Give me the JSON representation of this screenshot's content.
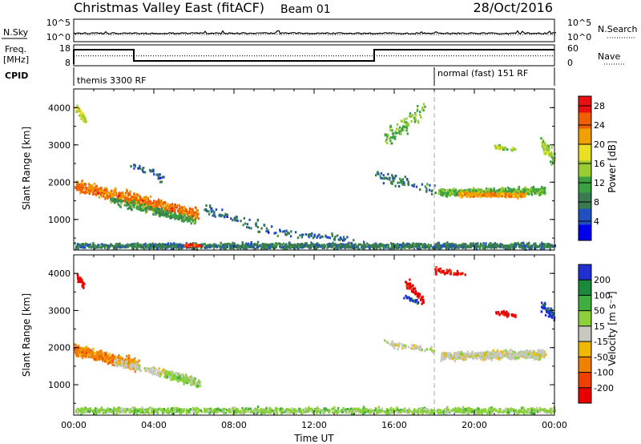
{
  "header": {
    "title": "Christmas Valley East (fitACF)",
    "beam": "Beam 01",
    "date": "28/Oct/2016"
  },
  "chart_data": [
    {
      "type": "line",
      "panel": "noise",
      "left_label": "N.Sky",
      "right_label": "N.Search",
      "left_ticks": [
        "10^5",
        "10^0"
      ],
      "right_ticks": [
        "10^5",
        "10^0"
      ],
      "series": [
        {
          "name": "N.Sky",
          "style": "solid"
        },
        {
          "name": "N.Search",
          "style": "dotted"
        }
      ]
    },
    {
      "type": "line",
      "panel": "frequency",
      "left_label_lines": [
        "Freq.",
        "[MHz]"
      ],
      "right_label": "Nave",
      "left_ticks": [
        "18",
        "8"
      ],
      "right_ticks": [
        "60",
        "0"
      ],
      "left_range": [
        8,
        18
      ],
      "right_range": [
        0,
        60
      ],
      "freq_series": {
        "x": [
          0,
          3,
          3,
          15,
          15,
          24
        ],
        "y": [
          16.2,
          16.2,
          9.8,
          9.8,
          16.2,
          16.2
        ]
      },
      "nave_series": {
        "x": [
          0,
          24
        ],
        "y": [
          28,
          28
        ]
      }
    },
    {
      "type": "annotation",
      "panel": "cpid",
      "label": "CPID",
      "segments": [
        {
          "text": "themis 3300 RF",
          "start": 0
        },
        {
          "text": "normal (fast) 151 RF",
          "start": 18
        }
      ]
    },
    {
      "type": "heatmap",
      "panel": "power",
      "ylabel": "Slant Range [km]",
      "ylim": [
        180,
        4500
      ],
      "y_ticks": [
        "4000",
        "3000",
        "2000",
        "1000"
      ],
      "colorbar_label": "Power [dB]",
      "colorbar_ticks": [
        "28",
        "24",
        "20",
        "16",
        "12",
        "8",
        "4"
      ],
      "colorbar_range": [
        0,
        30
      ],
      "colorbar_colors": [
        "#0000ee",
        "#2050c0",
        "#3a7a50",
        "#3aa040",
        "#9acd32",
        "#e8e020",
        "#f0a000",
        "#f06000",
        "#e81010"
      ],
      "scatter_groups": [
        {
          "x": [
            0,
            6.2
          ],
          "y": [
            1950,
            1150
          ],
          "spread": 230,
          "n": 600,
          "level": 24
        },
        {
          "x": [
            1.8,
            6
          ],
          "y": [
            1550,
            1000
          ],
          "spread": 160,
          "n": 220,
          "level": 11
        },
        {
          "x": [
            0.1,
            0.6
          ],
          "y": [
            4000,
            3650
          ],
          "spread": 180,
          "n": 40,
          "level": 16
        },
        {
          "x": [
            2.6,
            4.5
          ],
          "y": [
            2620,
            2100
          ],
          "spread": 140,
          "n": 35,
          "level": 7
        },
        {
          "x": [
            6.5,
            10
          ],
          "y": [
            1300,
            700
          ],
          "spread": 200,
          "n": 70,
          "level": 7
        },
        {
          "x": [
            10,
            14
          ],
          "y": [
            700,
            500
          ],
          "spread": 120,
          "n": 60,
          "level": 7
        },
        {
          "x": [
            15.5,
            17.5
          ],
          "y": [
            3200,
            4000
          ],
          "spread": 350,
          "n": 90,
          "level": 13
        },
        {
          "x": [
            15,
            18
          ],
          "y": [
            2250,
            1800
          ],
          "spread": 220,
          "n": 70,
          "level": 8
        },
        {
          "x": [
            18.2,
            23.5
          ],
          "y": [
            1750,
            1800
          ],
          "spread": 130,
          "n": 520,
          "level": 13
        },
        {
          "x": [
            19.2,
            22.5
          ],
          "y": [
            1700,
            1680
          ],
          "spread": 90,
          "n": 260,
          "level": 22
        },
        {
          "x": [
            21,
            22
          ],
          "y": [
            2980,
            2900
          ],
          "spread": 90,
          "n": 40,
          "level": 15
        },
        {
          "x": [
            23.3,
            24
          ],
          "y": [
            3100,
            2600
          ],
          "spread": 300,
          "n": 60,
          "level": 15
        },
        {
          "x": [
            0,
            24
          ],
          "y": [
            320,
            320
          ],
          "spread": 110,
          "n": 1500,
          "level": 8
        },
        {
          "x": [
            5.5,
            6.3
          ],
          "y": [
            330,
            330
          ],
          "spread": 60,
          "n": 40,
          "level": 26
        }
      ]
    },
    {
      "type": "heatmap",
      "panel": "velocity",
      "xlabel": "Time UT",
      "ylabel": "Slant Range [km]",
      "xlim": [
        0,
        24
      ],
      "ylim": [
        180,
        4500
      ],
      "x_ticks": [
        "00:00",
        "04:00",
        "08:00",
        "12:00",
        "16:00",
        "20:00",
        "00:00"
      ],
      "y_ticks": [
        "4000",
        "3000",
        "2000",
        "1000"
      ],
      "colorbar_label": "Velocity [m s⁻¹]",
      "colorbar_ticks": [
        "200",
        "100",
        "50",
        "15",
        "-15",
        "-50",
        "-100",
        "-200"
      ],
      "colorbar_colors": [
        "#2030d0",
        "#1a8a3a",
        "#3fae3f",
        "#8cd13c",
        "#c8c8c0",
        "#f0b800",
        "#f08000",
        "#f04000",
        "#e80000"
      ],
      "scatter_groups": [
        {
          "x": [
            0,
            3.2
          ],
          "y": [
            1980,
            1550
          ],
          "spread": 220,
          "n": 420,
          "cat": 6
        },
        {
          "x": [
            2,
            6
          ],
          "y": [
            1650,
            1150
          ],
          "spread": 150,
          "n": 220,
          "cat": 4
        },
        {
          "x": [
            4.5,
            6.3
          ],
          "y": [
            1300,
            1050
          ],
          "spread": 150,
          "n": 120,
          "cat": 3
        },
        {
          "x": [
            0.1,
            0.5
          ],
          "y": [
            3950,
            3700
          ],
          "spread": 150,
          "n": 30,
          "cat": 8
        },
        {
          "x": [
            15.5,
            18
          ],
          "y": [
            2150,
            1950
          ],
          "spread": 120,
          "n": 70,
          "cat": 4
        },
        {
          "x": [
            18.3,
            23.5
          ],
          "y": [
            1800,
            1850
          ],
          "spread": 160,
          "n": 650,
          "cat": 4
        },
        {
          "x": [
            16.5,
            17.4
          ],
          "y": [
            3800,
            3300
          ],
          "spread": 200,
          "n": 60,
          "cat": 8
        },
        {
          "x": [
            16.5,
            17.2
          ],
          "y": [
            3400,
            3250
          ],
          "spread": 70,
          "n": 25,
          "cat": 0
        },
        {
          "x": [
            18,
            19.5
          ],
          "y": [
            4100,
            4000
          ],
          "spread": 120,
          "n": 45,
          "cat": 8
        },
        {
          "x": [
            21,
            22
          ],
          "y": [
            2980,
            2900
          ],
          "spread": 80,
          "n": 35,
          "cat": 8
        },
        {
          "x": [
            23.3,
            24
          ],
          "y": [
            3150,
            2850
          ],
          "spread": 200,
          "n": 50,
          "cat": 0
        },
        {
          "x": [
            0,
            24
          ],
          "y": [
            330,
            330
          ],
          "spread": 110,
          "n": 1300,
          "cat": 3
        }
      ]
    }
  ]
}
